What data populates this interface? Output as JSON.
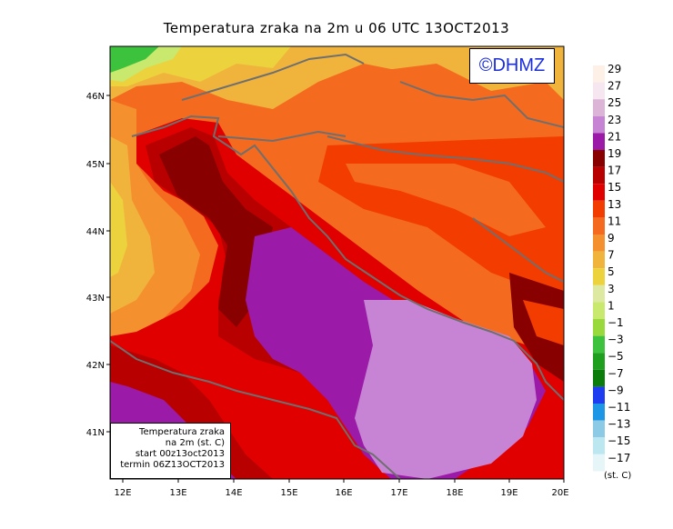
{
  "map": {
    "title": "Temperatura zraka na 2m u 06 UTC 13OCT2013",
    "copyright": "©DHMZ",
    "lat_labels": [
      "46N",
      "45N",
      "44N",
      "43N",
      "42N",
      "41N"
    ],
    "lon_labels": [
      "12E",
      "13E",
      "14E",
      "15E",
      "16E",
      "17E",
      "18E",
      "19E",
      "20E"
    ],
    "info_box": {
      "line1": "Temperatura zraka",
      "line2": "na 2m (st. C)",
      "line3": "start 00z13oct2013",
      "line4": "termin 06Z13OCT2013"
    }
  },
  "colorbar": {
    "labels": [
      "29",
      "27",
      "25",
      "23",
      "21",
      "19",
      "17",
      "15",
      "13",
      "11",
      "9",
      "7",
      "5",
      "3",
      "1",
      "−1",
      "−3",
      "−5",
      "−7",
      "−9",
      "−11",
      "−13",
      "−15",
      "−17"
    ],
    "colors": [
      "#fdf0e6",
      "#f6e6f0",
      "#dcb4d8",
      "#c884d4",
      "#9b1aa8",
      "#880000",
      "#b80000",
      "#e00000",
      "#f23c00",
      "#f46a1e",
      "#f5902e",
      "#f0b43c",
      "#ecd23c",
      "#dde8a0",
      "#c8e86e",
      "#9ad93c",
      "#3cc23c",
      "#1ea01e",
      "#0a7d0a",
      "#1e3cf0",
      "#1e96e6",
      "#8ccae6",
      "#bce6f0",
      "#e6f6f8"
    ],
    "units": "(st. C)"
  }
}
